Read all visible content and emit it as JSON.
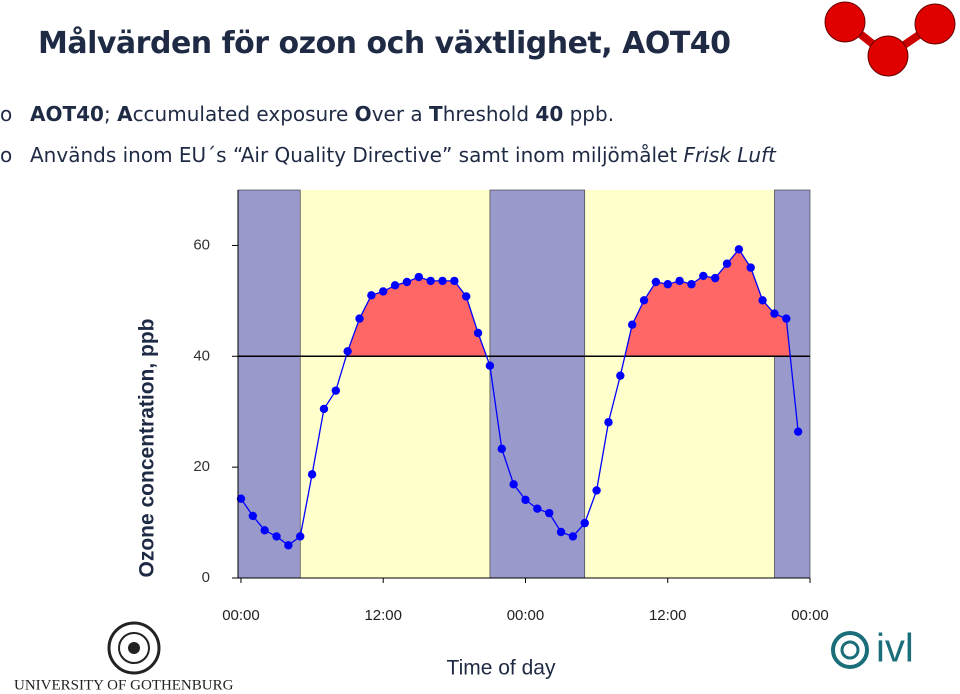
{
  "header": {
    "title": "Målvärden för ozon och växtlighet, AOT40",
    "bullets": [
      [
        {
          "text": "AOT40",
          "bold": true
        },
        {
          "text": "; ",
          "bold": false
        },
        {
          "text": "A",
          "bold": true
        },
        {
          "text": "ccumulated exposure ",
          "bold": false
        },
        {
          "text": "O",
          "bold": true
        },
        {
          "text": "ver a ",
          "bold": false
        },
        {
          "text": "T",
          "bold": true
        },
        {
          "text": "hreshold ",
          "bold": false
        },
        {
          "text": "40",
          "bold": true
        },
        {
          "text": " ppb.",
          "bold": false
        }
      ],
      [
        {
          "text": "Används inom EU´s “Air Quality Directive” samt inom miljömålet ",
          "italic": false
        },
        {
          "text": "Frisk Luft",
          "italic": true
        }
      ]
    ]
  },
  "footer": {
    "university": "UNIVERSITY OF GOTHENBURG",
    "ivl": "ivl"
  },
  "chart_data": {
    "type": "line",
    "y_label": "Ozone concentration, ppb",
    "x_label": "Time of day",
    "x": [
      0,
      1,
      2,
      3,
      4,
      5,
      6,
      7,
      8,
      9,
      10,
      11,
      12,
      13,
      14,
      15,
      16,
      17,
      18,
      19,
      20,
      21,
      22,
      23,
      24,
      25,
      26,
      27,
      28,
      29,
      30,
      31,
      32,
      33,
      34,
      35,
      36,
      37,
      38,
      39,
      40,
      41,
      42,
      43,
      44,
      45,
      46,
      47
    ],
    "series": [
      {
        "color": "#0000ff",
        "values": [
          14.3,
          11.2,
          8.6,
          7.5,
          5.9,
          7.5,
          18.7,
          30.5,
          33.8,
          40.9,
          46.8,
          51,
          51.7,
          52.8,
          53.4,
          54.3,
          53.6,
          53.6,
          53.6,
          50.8,
          44.2,
          38.3,
          23.3,
          16.9,
          14.1,
          12.5,
          11.7,
          8.3,
          7.5,
          9.9,
          15.8,
          28.1,
          36.5,
          45.7,
          50.1,
          53.4,
          53,
          53.6,
          53,
          54.5,
          54.1,
          56.7,
          59.3,
          56,
          50.1,
          47.7,
          46.8,
          26.4
        ]
      }
    ],
    "threshold": 40,
    "exceedance_color": "#ff6666",
    "night_periods": [
      [
        -0.25,
        5
      ],
      [
        21,
        29
      ],
      [
        45,
        48
      ]
    ],
    "night_color": "#9999cc",
    "day_color": "#ffffcc",
    "xlim": [
      -0.25,
      48
    ],
    "ylim": [
      0,
      70
    ],
    "xticks": [
      {
        "value": 0,
        "label": "00:00"
      },
      {
        "value": 12,
        "label": "12:00"
      },
      {
        "value": 24,
        "label": "00:00"
      },
      {
        "value": 36,
        "label": "12:00"
      },
      {
        "value": 48,
        "label": "00:00"
      }
    ],
    "yticks": [
      0,
      20,
      40,
      60
    ]
  }
}
